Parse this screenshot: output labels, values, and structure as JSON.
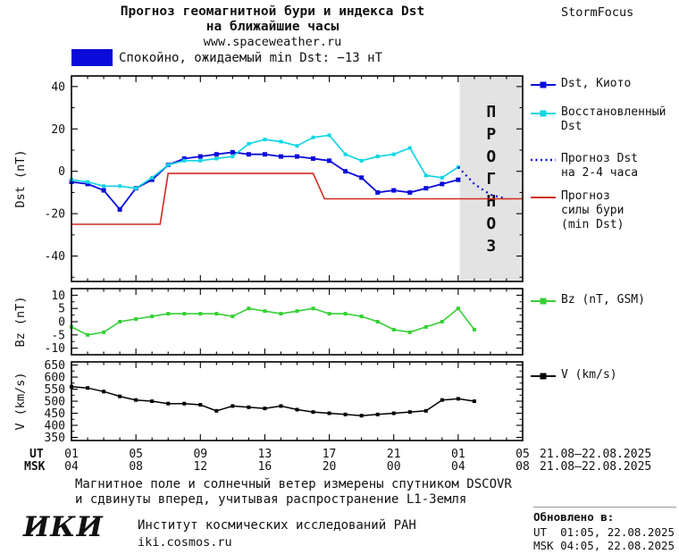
{
  "header": {
    "title_line1": "Прогноз геомагнитной бури и индекса Dst",
    "title_line2": "на ближайшие часы",
    "site": "www.spaceweather.ru",
    "brand": "StormFocus",
    "status_label": "Спокойно, ожидаемый min Dst: −13 нТ",
    "status_color": "#0a0ada"
  },
  "chart_data": [
    {
      "type": "line",
      "ylabel": "Dst (nT)",
      "ylim": [
        -52,
        45
      ],
      "yticks": [
        40,
        20,
        0,
        -20,
        -40
      ],
      "ytick_minor_step": 10,
      "forecast_region": {
        "x0": 25.1,
        "x1": 29,
        "label": "ПРОГНОЗ",
        "fill": "#e3e3e3",
        "label_color": "#bcbcbc"
      },
      "series": [
        {
          "id": "dst-kyoto",
          "name": "Dst, Киото",
          "color": "#0a0ada",
          "marker": true,
          "msize": 5,
          "width": 1.8,
          "x": [
            1,
            2,
            3,
            4,
            5,
            6,
            7,
            8,
            9,
            10,
            11,
            12,
            13,
            14,
            15,
            16,
            17,
            18,
            19,
            20,
            21,
            22,
            23,
            24,
            25
          ],
          "y": [
            -5,
            -6,
            -9,
            -18,
            -8,
            -4,
            3,
            6,
            7,
            8,
            9,
            8,
            8,
            7,
            7,
            6,
            5,
            0,
            -3,
            -10,
            -9,
            -10,
            -8,
            -6,
            -4
          ]
        },
        {
          "id": "dst-restored",
          "name": "Восстановленный Dst",
          "color": "#12d6e2",
          "marker": true,
          "msize": 4,
          "width": 1.7,
          "x": [
            1,
            2,
            3,
            4,
            5,
            6,
            7,
            8,
            9,
            10,
            11,
            12,
            13,
            14,
            15,
            16,
            17,
            18,
            19,
            20,
            21,
            22,
            23,
            24,
            25
          ],
          "y": [
            -4,
            -5,
            -7,
            -7,
            -8,
            -3,
            3,
            5,
            5,
            6,
            7,
            13,
            15,
            14,
            12,
            16,
            17,
            8,
            5,
            7,
            8,
            11,
            -2,
            -3,
            2
          ]
        },
        {
          "id": "dst-forecast",
          "name": "Прогноз Dst на 2-4 часа",
          "color": "#0a0ada",
          "marker": false,
          "width": 2.2,
          "dash": "2 4",
          "x": [
            25,
            26,
            27,
            28
          ],
          "y": [
            2,
            -6,
            -11,
            -13
          ]
        },
        {
          "id": "storm-strength-forecast",
          "name": "Прогноз силы бури (min Dst)",
          "color": "#d22a20",
          "marker": false,
          "width": 1.6,
          "x": [
            1,
            6.5,
            7,
            16,
            16.7,
            29
          ],
          "y": [
            -25,
            -25,
            -1,
            -1,
            -13,
            -13
          ]
        }
      ],
      "legend": [
        {
          "id": "dst-kyoto",
          "label": "Dst, Киото",
          "color": "#0a0ada",
          "style": "line-square"
        },
        {
          "id": "dst-restored",
          "label": "Восстановленный\nDst",
          "color": "#12d6e2",
          "style": "line-square"
        },
        {
          "id": "dst-forecast",
          "label": "Прогноз Dst\nна 2-4 часа",
          "color": "#0a0ada",
          "style": "dots"
        },
        {
          "id": "storm-strength-forecast",
          "label": "Прогноз\nсилы бури\n(min Dst)",
          "color": "#d22a20",
          "style": "line"
        }
      ]
    },
    {
      "type": "line",
      "ylabel": "Bz (nT)",
      "ylim": [
        -12.5,
        12.5
      ],
      "yticks": [
        10,
        5,
        0,
        -5,
        -10
      ],
      "ytick_minor_step": 2.5,
      "series": [
        {
          "id": "bz-gsm",
          "name": "Bz (nT, GSM)",
          "color": "#35cf35",
          "marker": true,
          "msize": 4,
          "width": 1.6,
          "x": [
            1,
            2,
            3,
            4,
            5,
            6,
            7,
            8,
            9,
            10,
            11,
            12,
            13,
            14,
            15,
            16,
            17,
            18,
            19,
            20,
            21,
            22,
            23,
            24,
            25,
            26
          ],
          "y": [
            -2,
            -5,
            -4,
            0,
            1,
            2,
            3,
            3,
            3,
            3,
            2,
            5,
            4,
            3,
            4,
            5,
            3,
            3,
            2,
            0,
            -3,
            -4,
            -2,
            0,
            5,
            -3
          ]
        }
      ],
      "legend": [
        {
          "id": "bz-gsm",
          "label": "Bz (nT, GSM)",
          "color": "#35cf35",
          "style": "line-square"
        }
      ]
    },
    {
      "type": "line",
      "ylabel": "V (km/s)",
      "ylim": [
        337,
        663
      ],
      "yticks": [
        650,
        600,
        550,
        500,
        450,
        400,
        350
      ],
      "ytick_minor_step": 25,
      "series": [
        {
          "id": "solar-wind-speed",
          "name": "V (km/s)",
          "color": "#000000",
          "marker": true,
          "msize": 4,
          "width": 1.5,
          "x": [
            1,
            2,
            3,
            4,
            5,
            6,
            7,
            8,
            9,
            10,
            11,
            12,
            13,
            14,
            15,
            16,
            17,
            18,
            19,
            20,
            21,
            22,
            23,
            24,
            25,
            26
          ],
          "y": [
            560,
            555,
            540,
            520,
            505,
            500,
            490,
            490,
            485,
            460,
            480,
            475,
            470,
            480,
            465,
            455,
            450,
            445,
            440,
            445,
            450,
            455,
            460,
            505,
            510,
            500
          ]
        }
      ],
      "legend": [
        {
          "id": "solar-wind-speed",
          "label": "V (km/s)",
          "color": "#000000",
          "style": "line-square"
        }
      ]
    }
  ],
  "xaxis": {
    "xlim": [
      1,
      29
    ],
    "tick_positions": [
      1,
      5,
      9,
      13,
      17,
      21,
      25,
      29
    ],
    "ut_label": "UT",
    "msk_label": "MSK",
    "ut_tick_labels": [
      "01",
      "05",
      "09",
      "13",
      "17",
      "21",
      "01",
      "05"
    ],
    "msk_tick_labels": [
      "04",
      "08",
      "12",
      "16",
      "20",
      "00",
      "04",
      "08"
    ],
    "ut_date": "21.08–22.08.2025",
    "msk_date": "21.08–22.08.2025"
  },
  "footer": {
    "note_line1": "Магнитное поле и солнечный ветер измерены спутником DSCOVR",
    "note_line2": "и сдвинуты вперед, учитывая распространение L1-Земля",
    "logo": "ИКИ",
    "institute": "Институт космических исследований РАН",
    "site": "iki.cosmos.ru",
    "updated_label": "Обновлено в:",
    "updated_ut": "UT  01:05, 22.08.2025",
    "updated_msk": "MSK 04:05, 22.08.2025"
  }
}
